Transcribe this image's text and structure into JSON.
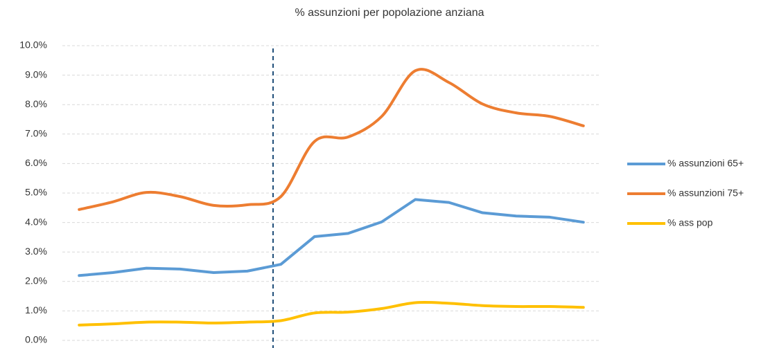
{
  "chart_data": {
    "type": "line",
    "title": "% assunzioni per popolazione anziana",
    "categories": [
      null,
      null,
      null,
      null,
      null,
      null,
      null,
      null,
      null,
      null,
      null,
      null,
      null,
      null,
      null,
      null
    ],
    "series": [
      {
        "name": "% assunzioni 65+",
        "color": "#5b9bd5",
        "smooth": false,
        "values": [
          2.2,
          2.3,
          2.45,
          2.42,
          2.3,
          2.35,
          2.58,
          3.52,
          3.63,
          4.02,
          4.78,
          4.68,
          4.33,
          4.22,
          4.18,
          4.01
        ]
      },
      {
        "name": "% assunzioni 75+",
        "color": "#ed7d31",
        "smooth": true,
        "values": [
          4.44,
          4.7,
          5.02,
          4.88,
          4.58,
          4.6,
          4.88,
          6.75,
          6.9,
          7.6,
          9.15,
          8.75,
          8.02,
          7.72,
          7.6,
          7.28
        ]
      },
      {
        "name": "% ass pop",
        "color": "#ffc000",
        "smooth": true,
        "values": [
          0.52,
          0.56,
          0.62,
          0.62,
          0.59,
          0.62,
          0.67,
          0.93,
          0.96,
          1.08,
          1.28,
          1.26,
          1.18,
          1.15,
          1.15,
          1.12
        ]
      }
    ],
    "ylim": [
      0,
      10
    ],
    "yticks": [
      {
        "value": 0,
        "label": "0.0%"
      },
      {
        "value": 1,
        "label": "1.0%"
      },
      {
        "value": 2,
        "label": "2.0%"
      },
      {
        "value": 3,
        "label": "3.0%"
      },
      {
        "value": 4,
        "label": "4.0%"
      },
      {
        "value": 5,
        "label": "5.0%"
      },
      {
        "value": 6,
        "label": "6.0%"
      },
      {
        "value": 7,
        "label": "7.0%"
      },
      {
        "value": 8,
        "label": "8.0%"
      },
      {
        "value": 9,
        "label": "9.0%"
      },
      {
        "value": 10,
        "label": "10.0%"
      }
    ],
    "grid": true,
    "legend": "right"
  }
}
